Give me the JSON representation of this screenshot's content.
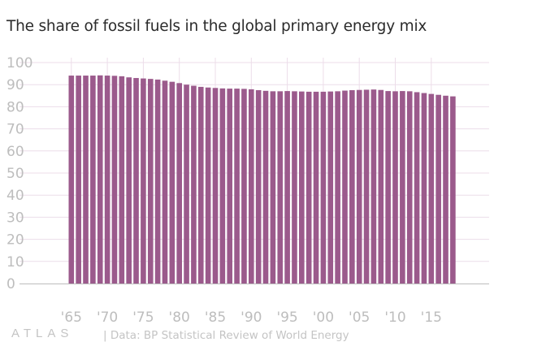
{
  "chart_data": {
    "type": "bar",
    "title": "The share of fossil fuels in the global primary energy mix",
    "xlabel": "",
    "ylabel": "",
    "ylim": [
      0,
      100
    ],
    "y_ticks": [
      "0",
      "10",
      "20",
      "30",
      "40",
      "50",
      "60",
      "70",
      "80",
      "90",
      "100"
    ],
    "x_tick_labels": [
      "'65",
      "'70",
      "'75",
      "'80",
      "'85",
      "'90",
      "'95",
      "'00",
      "'05",
      "'10",
      "'15"
    ],
    "grid": true,
    "categories": [
      1965,
      1966,
      1967,
      1968,
      1969,
      1970,
      1971,
      1972,
      1973,
      1974,
      1975,
      1976,
      1977,
      1978,
      1979,
      1980,
      1981,
      1982,
      1983,
      1984,
      1985,
      1986,
      1987,
      1988,
      1989,
      1990,
      1991,
      1992,
      1993,
      1994,
      1995,
      1996,
      1997,
      1998,
      1999,
      2000,
      2001,
      2002,
      2003,
      2004,
      2005,
      2006,
      2007,
      2008,
      2009,
      2010,
      2011,
      2012,
      2013,
      2014,
      2015,
      2016,
      2017,
      2018
    ],
    "values": [
      94.1,
      94.1,
      94.1,
      94.1,
      94.2,
      94.1,
      94.0,
      93.8,
      93.3,
      93.0,
      92.8,
      92.6,
      92.3,
      91.8,
      91.3,
      90.7,
      90.0,
      89.5,
      89.0,
      88.7,
      88.5,
      88.3,
      88.2,
      88.2,
      88.1,
      87.9,
      87.5,
      87.2,
      87.0,
      87.0,
      87.1,
      87.0,
      86.9,
      86.8,
      86.8,
      86.8,
      86.9,
      87.0,
      87.3,
      87.5,
      87.6,
      87.7,
      87.8,
      87.6,
      87.1,
      87.0,
      87.1,
      87.0,
      86.6,
      86.2,
      85.8,
      85.4,
      85.0,
      84.7
    ],
    "colors": {
      "bar": "#9b5a8c",
      "grid": "#ecdde9",
      "axis": "#bdbdbd"
    }
  },
  "footer": {
    "logo": "ATLAS",
    "source": "| Data: BP Statistical Review of World Energy"
  }
}
